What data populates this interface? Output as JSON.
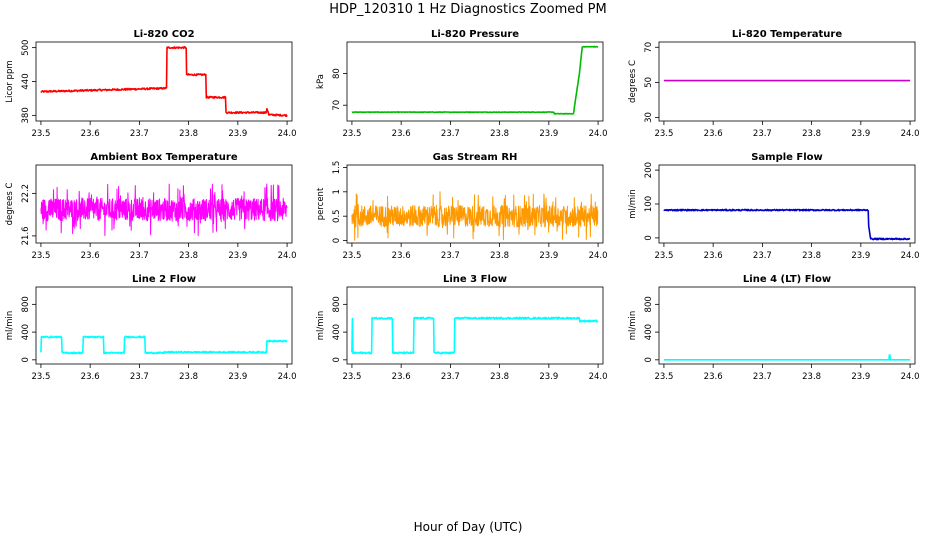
{
  "figure": {
    "title": "HDP_120310  1 Hz Diagnostics Zoomed PM",
    "xlabel": "Hour of Day (UTC)"
  },
  "chart_data": [
    {
      "type": "line",
      "title": "Li-820 CO2",
      "ylabel": "Licor ppm",
      "color": "#ff0000",
      "xlim": [
        23.49,
        24.01
      ],
      "ylim": [
        370,
        510
      ],
      "xticks": [
        "23.5",
        "23.6",
        "23.7",
        "23.8",
        "23.9",
        "24.0"
      ],
      "yticks": [
        380,
        440,
        500
      ],
      "series": [
        {
          "name": "CO2",
          "x": [
            23.5,
            23.755,
            23.756,
            23.795,
            23.796,
            23.835,
            23.836,
            23.875,
            23.876,
            23.958,
            23.959,
            23.962,
            23.963,
            24.0
          ],
          "y": [
            422,
            428,
            500,
            500,
            452,
            452,
            412,
            412,
            385,
            385,
            392,
            385,
            381,
            380
          ],
          "noise": 1.5,
          "step": true
        }
      ]
    },
    {
      "type": "line",
      "title": "Li-820 Pressure",
      "ylabel": "kPa",
      "color": "#00bb00",
      "xlim": [
        23.49,
        24.01
      ],
      "ylim": [
        65,
        90
      ],
      "xticks": [
        "23.5",
        "23.6",
        "23.7",
        "23.8",
        "23.9",
        "24.0"
      ],
      "yticks": [
        70,
        80
      ],
      "series": [
        {
          "name": "Pressure",
          "x": [
            23.5,
            23.91,
            23.911,
            23.95,
            23.962,
            23.968,
            24.0
          ],
          "y": [
            67.8,
            67.8,
            67.3,
            67.3,
            80,
            88.5,
            88.5
          ],
          "noise": 0.08,
          "step": false
        }
      ]
    },
    {
      "type": "line",
      "title": "Li-820 Temperature",
      "ylabel": "degrees C",
      "color": "#cc00cc",
      "xlim": [
        23.49,
        24.01
      ],
      "ylim": [
        28,
        73
      ],
      "xticks": [
        "23.5",
        "23.6",
        "23.7",
        "23.8",
        "23.9",
        "24.0"
      ],
      "yticks": [
        30,
        50,
        70
      ],
      "series": [
        {
          "name": "Temperature",
          "x": [
            23.5,
            24.0
          ],
          "y": [
            51,
            51
          ],
          "noise": 0,
          "step": false
        }
      ]
    },
    {
      "type": "line",
      "title": "Ambient Box Temperature",
      "ylabel": "degrees C",
      "color": "#ff00ff",
      "xlim": [
        23.49,
        24.01
      ],
      "ylim": [
        21.5,
        22.6
      ],
      "xticks": [
        "23.5",
        "23.6",
        "23.7",
        "23.8",
        "23.9",
        "24.0"
      ],
      "yticks": [
        21.6,
        22.2
      ],
      "series": [
        {
          "name": "Box Temp",
          "x": [
            23.5,
            24.0
          ],
          "y": [
            21.97,
            21.97
          ],
          "noise": 0.16,
          "step": false,
          "dense": true
        }
      ]
    },
    {
      "type": "line",
      "title": "Gas Stream RH",
      "ylabel": "percent",
      "color": "#ff9900",
      "xlim": [
        23.49,
        24.01
      ],
      "ylim": [
        -0.05,
        1.55
      ],
      "xticks": [
        "23.5",
        "23.6",
        "23.7",
        "23.8",
        "23.9",
        "24.0"
      ],
      "yticks": [
        0.0,
        0.5,
        1.0,
        1.5
      ],
      "series": [
        {
          "name": "RH",
          "x": [
            23.5,
            24.0
          ],
          "y": [
            0.5,
            0.5
          ],
          "noise": 0.22,
          "step": false,
          "dense": true
        }
      ]
    },
    {
      "type": "line",
      "title": "Sample Flow",
      "ylabel": "ml/min",
      "color": "#0000cc",
      "xlim": [
        23.49,
        24.01
      ],
      "ylim": [
        -15,
        215
      ],
      "xticks": [
        "23.5",
        "23.6",
        "23.7",
        "23.8",
        "23.9",
        "24.0"
      ],
      "yticks": [
        0,
        100,
        200
      ],
      "series": [
        {
          "name": "Sample Flow",
          "x": [
            23.5,
            23.915,
            23.916,
            23.92,
            24.0
          ],
          "y": [
            82,
            82,
            35,
            -3,
            -3
          ],
          "noise": 2,
          "step": false
        }
      ]
    },
    {
      "type": "line",
      "title": "Line 2 Flow",
      "ylabel": "ml/min",
      "color": "#00ffff",
      "xlim": [
        23.49,
        24.01
      ],
      "ylim": [
        -60,
        1050
      ],
      "xticks": [
        "23.5",
        "23.6",
        "23.7",
        "23.8",
        "23.9",
        "24.0"
      ],
      "yticks": [
        0,
        400,
        800
      ],
      "series": [
        {
          "name": "Line 2",
          "x": [
            23.5,
            23.501,
            23.542,
            23.543,
            23.585,
            23.586,
            23.627,
            23.628,
            23.669,
            23.67,
            23.711,
            23.712,
            23.75,
            23.751,
            23.958,
            23.959,
            24.0
          ],
          "y": [
            100,
            330,
            330,
            100,
            100,
            330,
            330,
            100,
            100,
            330,
            330,
            100,
            100,
            110,
            110,
            270,
            270
          ],
          "noise": 10,
          "step": true
        }
      ]
    },
    {
      "type": "line",
      "title": "Line 3 Flow",
      "ylabel": "ml/min",
      "color": "#00ffff",
      "xlim": [
        23.49,
        24.01
      ],
      "ylim": [
        -60,
        1050
      ],
      "xticks": [
        "23.5",
        "23.6",
        "23.7",
        "23.8",
        "23.9",
        "24.0"
      ],
      "yticks": [
        0,
        400,
        800
      ],
      "series": [
        {
          "name": "Line 3",
          "x": [
            23.5,
            23.501,
            23.502,
            23.54,
            23.541,
            23.582,
            23.583,
            23.625,
            23.626,
            23.666,
            23.667,
            23.708,
            23.709,
            23.962,
            23.963,
            24.0
          ],
          "y": [
            100,
            600,
            100,
            100,
            600,
            600,
            100,
            100,
            600,
            600,
            100,
            100,
            600,
            600,
            560,
            560
          ],
          "noise": 12,
          "step": true
        }
      ]
    },
    {
      "type": "line",
      "title": "Line 4 (LT) Flow",
      "ylabel": "ml/min",
      "color": "#00ffff",
      "xlim": [
        23.49,
        24.01
      ],
      "ylim": [
        -60,
        1050
      ],
      "xticks": [
        "23.5",
        "23.6",
        "23.7",
        "23.8",
        "23.9",
        "24.0"
      ],
      "yticks": [
        0,
        400,
        800
      ],
      "series": [
        {
          "name": "Line 4",
          "x": [
            23.5,
            23.957,
            23.958,
            23.959,
            23.96,
            24.0
          ],
          "y": [
            0,
            0,
            70,
            70,
            0,
            0
          ],
          "noise": 0,
          "step": false
        }
      ]
    }
  ]
}
